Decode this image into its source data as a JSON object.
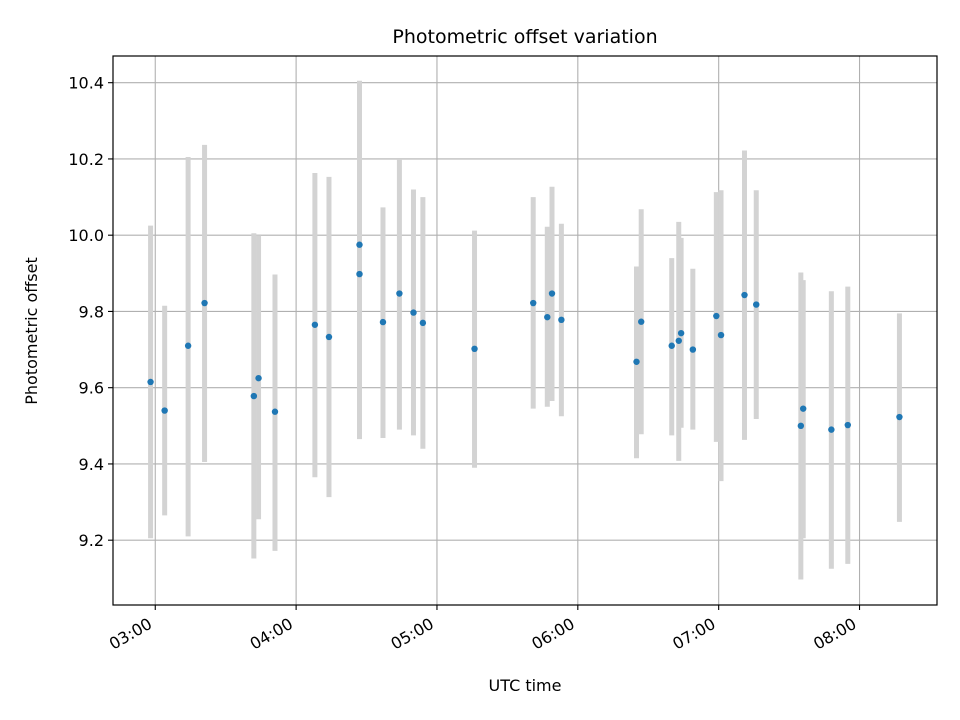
{
  "chart_data": {
    "type": "scatter",
    "title": "Photometric offset variation",
    "xlabel": "UTC time",
    "ylabel": "Photometric offset",
    "x_ticks": [
      "03:00",
      "04:00",
      "05:00",
      "06:00",
      "07:00",
      "08:00"
    ],
    "y_ticks": [
      "9.2",
      "9.4",
      "9.6",
      "9.8",
      "10.0",
      "10.2",
      "10.4"
    ],
    "xlim": [
      "02:42",
      "08:33"
    ],
    "ylim": [
      9.03,
      10.47
    ],
    "grid": true,
    "colors": {
      "point": "#1f77b4",
      "errorbar": "#d3d3d3",
      "grid": "#b0b0b0"
    },
    "points": [
      {
        "t": "02:58",
        "y": 9.615,
        "lo": 9.205,
        "hi": 10.025
      },
      {
        "t": "03:04",
        "y": 9.54,
        "lo": 9.265,
        "hi": 9.815
      },
      {
        "t": "03:14",
        "y": 9.71,
        "lo": 9.21,
        "hi": 10.205
      },
      {
        "t": "03:21",
        "y": 9.822,
        "lo": 9.405,
        "hi": 10.237
      },
      {
        "t": "03:42",
        "y": 9.578,
        "lo": 9.152,
        "hi": 10.005
      },
      {
        "t": "03:44",
        "y": 9.625,
        "lo": 9.255,
        "hi": 10.0
      },
      {
        "t": "03:51",
        "y": 9.537,
        "lo": 9.172,
        "hi": 9.897
      },
      {
        "t": "04:08",
        "y": 9.765,
        "lo": 9.365,
        "hi": 10.163
      },
      {
        "t": "04:14",
        "y": 9.733,
        "lo": 9.313,
        "hi": 10.153
      },
      {
        "t": "04:27",
        "y": 9.975,
        "lo": 9.545,
        "hi": 10.405
      },
      {
        "t": "04:27",
        "y": 9.898,
        "lo": 9.465,
        "hi": 10.33
      },
      {
        "t": "04:37",
        "y": 9.772,
        "lo": 9.468,
        "hi": 10.073
      },
      {
        "t": "04:44",
        "y": 9.847,
        "lo": 9.49,
        "hi": 10.2
      },
      {
        "t": "04:50",
        "y": 9.797,
        "lo": 9.475,
        "hi": 10.12
      },
      {
        "t": "04:54",
        "y": 9.77,
        "lo": 9.44,
        "hi": 10.1
      },
      {
        "t": "05:16",
        "y": 9.702,
        "lo": 9.39,
        "hi": 10.012
      },
      {
        "t": "05:41",
        "y": 9.822,
        "lo": 9.545,
        "hi": 10.1
      },
      {
        "t": "05:47",
        "y": 9.785,
        "lo": 9.55,
        "hi": 10.022
      },
      {
        "t": "05:49",
        "y": 9.847,
        "lo": 9.565,
        "hi": 10.127
      },
      {
        "t": "05:53",
        "y": 9.778,
        "lo": 9.525,
        "hi": 10.03
      },
      {
        "t": "06:25",
        "y": 9.668,
        "lo": 9.415,
        "hi": 9.918
      },
      {
        "t": "06:27",
        "y": 9.773,
        "lo": 9.478,
        "hi": 10.068
      },
      {
        "t": "06:40",
        "y": 9.71,
        "lo": 9.475,
        "hi": 9.94
      },
      {
        "t": "06:43",
        "y": 9.723,
        "lo": 9.408,
        "hi": 10.035
      },
      {
        "t": "06:44",
        "y": 9.743,
        "lo": 9.495,
        "hi": 9.993
      },
      {
        "t": "06:49",
        "y": 9.7,
        "lo": 9.49,
        "hi": 9.912
      },
      {
        "t": "06:59",
        "y": 9.788,
        "lo": 9.458,
        "hi": 10.113
      },
      {
        "t": "07:01",
        "y": 9.738,
        "lo": 9.355,
        "hi": 10.118
      },
      {
        "t": "07:11",
        "y": 9.843,
        "lo": 9.463,
        "hi": 10.222
      },
      {
        "t": "07:16",
        "y": 9.818,
        "lo": 9.518,
        "hi": 10.118
      },
      {
        "t": "07:35",
        "y": 9.5,
        "lo": 9.097,
        "hi": 9.902
      },
      {
        "t": "07:36",
        "y": 9.545,
        "lo": 9.205,
        "hi": 9.882
      },
      {
        "t": "07:48",
        "y": 9.49,
        "lo": 9.125,
        "hi": 9.853
      },
      {
        "t": "07:55",
        "y": 9.502,
        "lo": 9.138,
        "hi": 9.865
      },
      {
        "t": "08:17",
        "y": 9.523,
        "lo": 9.248,
        "hi": 9.795
      }
    ]
  }
}
